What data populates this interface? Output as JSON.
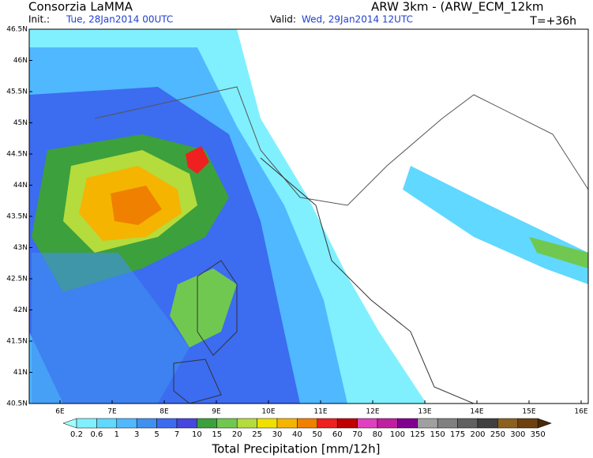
{
  "header": {
    "source": "Consorzia LaMMA",
    "init_label": "Init.:",
    "init": "Tue, 28Jan2014 00UTC",
    "valid_label": "Valid:",
    "valid": "Wed, 29Jan2014 12UTC",
    "model": "ARW 3km - (ARW_ECM_12km",
    "lead": "T=+36h"
  },
  "map": {
    "lat_labels": [
      "46.5N",
      "46N",
      "45.5N",
      "45N",
      "44.5N",
      "44N",
      "43.5N",
      "43N",
      "42.5N",
      "42N",
      "41.5N",
      "41N",
      "40.5N"
    ],
    "lon_labels": [
      "6E",
      "7E",
      "8E",
      "9E",
      "10E",
      "11E",
      "12E",
      "13E",
      "14E",
      "15E",
      "16E"
    ]
  },
  "colorbar": {
    "title": "Total Precipitation [mm/12h]",
    "labels": [
      "0.2",
      "0.6",
      "1",
      "3",
      "5",
      "7",
      "10",
      "15",
      "20",
      "25",
      "30",
      "40",
      "50",
      "60",
      "70",
      "80",
      "100",
      "125",
      "150",
      "175",
      "200",
      "250",
      "300",
      "350"
    ],
    "colors": [
      "#a0ffff",
      "#80f0ff",
      "#60d8ff",
      "#50b8ff",
      "#4090f0",
      "#3c6cf0",
      "#4646e0",
      "#3ca03c",
      "#70c850",
      "#b4dc3c",
      "#f0e000",
      "#f5b400",
      "#f08000",
      "#ee2020",
      "#c00000",
      "#e040c0",
      "#c020a0",
      "#800090",
      "#a0a0a0",
      "#808080",
      "#606060",
      "#404040",
      "#8c6020",
      "#6e4010",
      "#4a2808"
    ]
  }
}
